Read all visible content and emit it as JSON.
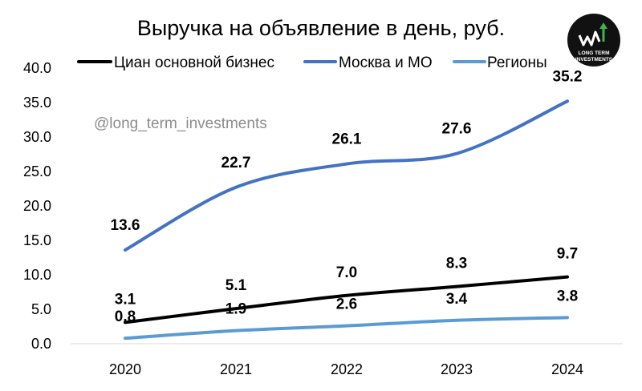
{
  "watermark": "@long_term_investments",
  "logo": {
    "line1": "LONG TERM",
    "line2": "INVESTMENTS"
  },
  "chart_data": {
    "type": "line",
    "title": "Выручка на объявление в день, руб.",
    "xlabel": "",
    "ylabel": "",
    "categories": [
      "2020",
      "2021",
      "2022",
      "2023",
      "2024"
    ],
    "ylim": [
      0,
      40
    ],
    "yticks": [
      "0.0",
      "5.0",
      "10.0",
      "15.0",
      "20.0",
      "25.0",
      "30.0",
      "35.0",
      "40.0"
    ],
    "grid": false,
    "legend_position": "top",
    "series": [
      {
        "name": "Циан основной бизнес",
        "color": "#000000",
        "values": [
          3.1,
          5.1,
          7.0,
          8.3,
          9.7
        ],
        "labels": [
          "3.1",
          "5.1",
          "7.0",
          "8.3",
          "9.7"
        ]
      },
      {
        "name": "Москва и МО",
        "color": "#4472c4",
        "values": [
          13.6,
          22.7,
          26.1,
          27.6,
          35.2
        ],
        "labels": [
          "13.6",
          "22.7",
          "26.1",
          "27.6",
          "35.2"
        ]
      },
      {
        "name": "Регионы",
        "color": "#5b9bd5",
        "values": [
          0.8,
          1.9,
          2.6,
          3.4,
          3.8
        ],
        "labels": [
          "0.8",
          "1.9",
          "2.6",
          "3.4",
          "3.8"
        ]
      }
    ]
  }
}
